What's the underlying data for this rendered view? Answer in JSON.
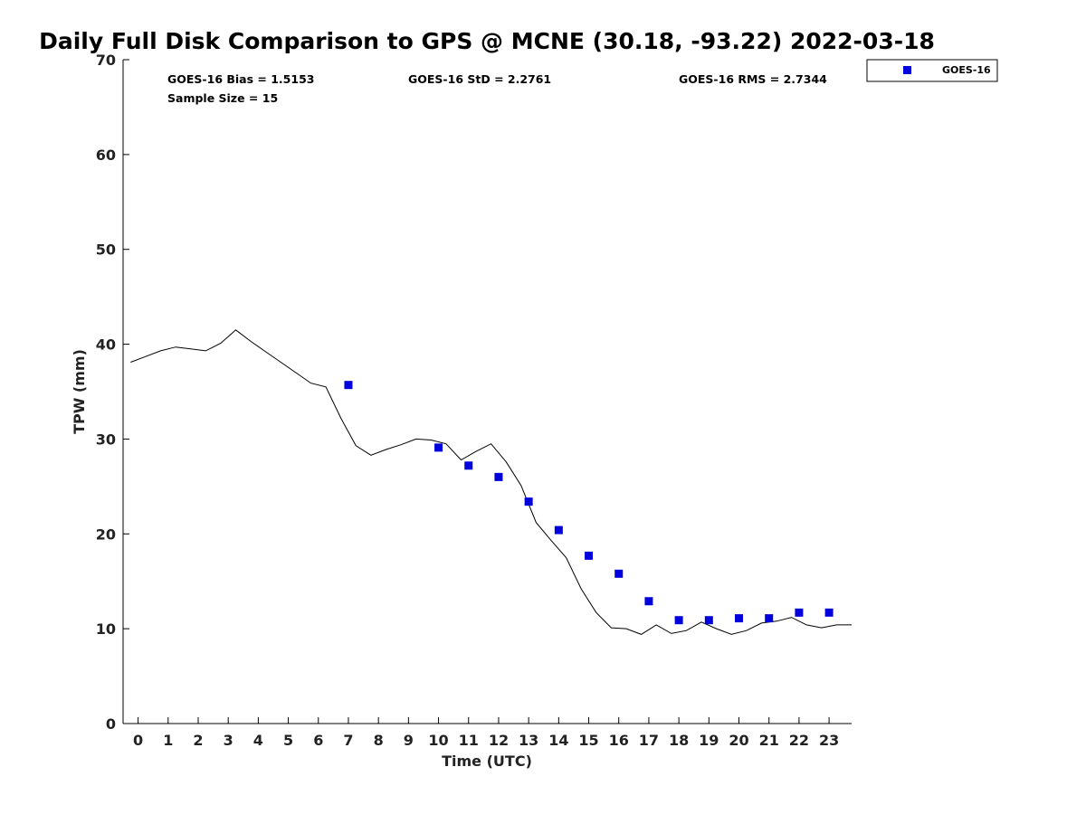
{
  "chart_data": {
    "type": "scatter",
    "title": "Daily Full Disk Comparison to GPS @ MCNE (30.18, -93.22) 2022-03-18",
    "xlabel": "Time (UTC)",
    "ylabel": "TPW (mm)",
    "xlim": [
      -0.5,
      23.75
    ],
    "ylim": [
      0,
      70
    ],
    "x_ticks": [
      0,
      1,
      2,
      3,
      4,
      5,
      6,
      7,
      8,
      9,
      10,
      11,
      12,
      13,
      14,
      15,
      16,
      17,
      18,
      19,
      20,
      21,
      22,
      23
    ],
    "x_tick_labels": [
      "0",
      "1",
      "2",
      "3",
      "4",
      "5",
      "6",
      "7",
      "8",
      "9",
      "10",
      "11",
      "12",
      "13",
      "14",
      "15",
      "16",
      "17",
      "18",
      "19",
      "20",
      "21",
      "22",
      "23"
    ],
    "y_ticks": [
      0,
      10,
      20,
      30,
      40,
      50,
      60,
      70
    ],
    "y_tick_labels": [
      "0",
      "10",
      "20",
      "30",
      "40",
      "50",
      "60",
      "70"
    ],
    "grid": false,
    "legend_position": "outside-top-right",
    "stats": {
      "bias": "GOES-16 Bias = 1.5153",
      "std": "GOES-16 StD = 2.2761",
      "rms": "GOES-16 RMS = 2.7344",
      "sample": "Sample Size = 15"
    },
    "series": [
      {
        "name": "GOES-16",
        "type": "scatter",
        "marker": "square",
        "color": "#0000dd",
        "x": [
          7,
          10,
          11,
          12,
          13,
          14,
          15,
          16,
          17,
          18,
          19,
          20,
          21,
          22,
          23
        ],
        "y": [
          35.7,
          29.1,
          27.2,
          26.0,
          23.4,
          20.4,
          17.7,
          15.8,
          12.9,
          10.9,
          10.9,
          11.1,
          11.1,
          11.7,
          11.7
        ]
      },
      {
        "type": "line",
        "color": "#000000",
        "x": [
          -0.25,
          0.25,
          0.75,
          1.25,
          1.75,
          2.25,
          2.75,
          3.25,
          3.75,
          4.25,
          4.75,
          5.25,
          5.75,
          6.25,
          6.75,
          7.25,
          7.75,
          8.25,
          8.75,
          9.25,
          9.75,
          10.25,
          10.75,
          11.25,
          11.75,
          12.25,
          12.75,
          13.25,
          13.75,
          14.25,
          14.75,
          15.25,
          15.75,
          16.25,
          16.75,
          17.25,
          17.75,
          18.25,
          18.75,
          19.25,
          19.75,
          20.25,
          20.75,
          21.25,
          21.75,
          22.25,
          22.75,
          23.25,
          23.75
        ],
        "y": [
          38.1,
          38.7,
          39.3,
          39.7,
          39.5,
          39.3,
          40.1,
          41.5,
          40.3,
          39.2,
          38.1,
          37.0,
          35.9,
          35.5,
          32.2,
          29.3,
          28.3,
          28.9,
          29.4,
          30.0,
          29.9,
          29.5,
          27.8,
          28.7,
          29.5,
          27.6,
          25.1,
          21.2,
          19.3,
          17.5,
          14.2,
          11.7,
          10.1,
          10.0,
          9.4,
          10.4,
          9.5,
          9.8,
          10.7,
          10.0,
          9.4,
          9.8,
          10.6,
          10.8,
          11.2,
          10.4,
          10.1,
          10.4,
          10.4
        ]
      }
    ]
  }
}
